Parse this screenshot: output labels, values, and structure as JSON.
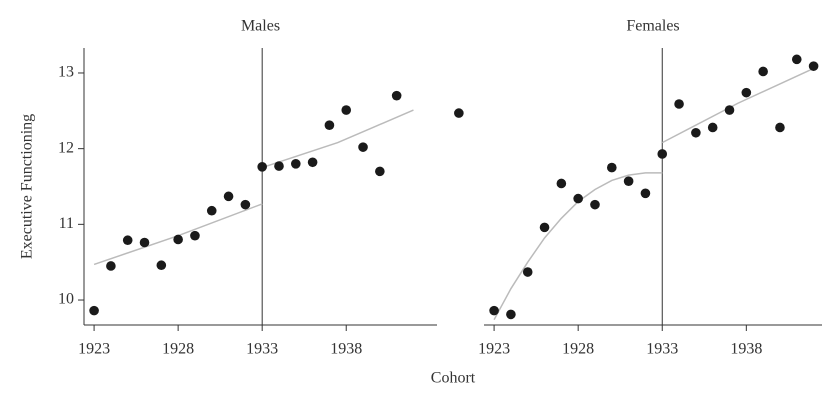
{
  "xlabel": "Cohort",
  "chart_data": [
    {
      "type": "scatter",
      "title": "Males",
      "ylabel": "Executive Functioning",
      "x": [
        1923,
        1924,
        1925,
        1926,
        1927,
        1928,
        1929,
        1930,
        1931,
        1932,
        1933,
        1934,
        1935,
        1936,
        1937,
        1938,
        1939,
        1940,
        1941,
        1944.7
      ],
      "values": [
        9.86,
        10.45,
        10.79,
        10.76,
        10.46,
        10.8,
        10.85,
        11.18,
        11.37,
        11.26,
        11.76,
        11.77,
        11.8,
        11.82,
        12.31,
        12.51,
        12.02,
        11.7,
        12.7,
        12.47
      ],
      "color": "#1a1a1a",
      "fits": [
        {
          "color": "#bbbbbb",
          "x": [
            1923,
            1928,
            1933
          ],
          "values": [
            10.47,
            10.85,
            11.27
          ]
        },
        {
          "color": "#bbbbbb",
          "x": [
            1933,
            1937.5,
            1942
          ],
          "values": [
            11.75,
            12.08,
            12.51
          ]
        }
      ],
      "vline": 1933,
      "xlim": [
        1922.4,
        1943.4
      ],
      "ylim": [
        9.67,
        13.33
      ],
      "xticks": [
        1923,
        1928,
        1933,
        1938
      ],
      "yticks": [
        10,
        11,
        12,
        13
      ]
    },
    {
      "type": "scatter",
      "title": "Females",
      "x": [
        1923,
        1924,
        1925,
        1926,
        1927,
        1928,
        1929,
        1930,
        1931,
        1932,
        1933,
        1934,
        1935,
        1936,
        1937,
        1938,
        1939,
        1940,
        1941,
        1942
      ],
      "values": [
        9.86,
        9.81,
        10.37,
        10.96,
        11.54,
        11.34,
        11.26,
        11.75,
        11.57,
        11.41,
        11.93,
        12.59,
        12.21,
        12.28,
        12.51,
        12.74,
        13.02,
        12.28,
        13.18,
        13.09
      ],
      "color": "#1a1a1a",
      "fits": [
        {
          "color": "#bbbbbb",
          "x": [
            1923,
            1924,
            1925,
            1926,
            1927,
            1928,
            1929,
            1930,
            1931,
            1932,
            1933
          ],
          "values": [
            9.74,
            10.15,
            10.5,
            10.82,
            11.08,
            11.3,
            11.46,
            11.58,
            11.65,
            11.68,
            11.68
          ]
        },
        {
          "color": "#bbbbbb",
          "x": [
            1933,
            1937.5,
            1942
          ],
          "values": [
            12.08,
            12.6,
            13.06
          ]
        }
      ],
      "vline": 1933,
      "xlim": [
        1922.4,
        1942.5
      ],
      "ylim": [
        9.67,
        13.33
      ],
      "xticks": [
        1923,
        1928,
        1933,
        1938
      ]
    }
  ]
}
